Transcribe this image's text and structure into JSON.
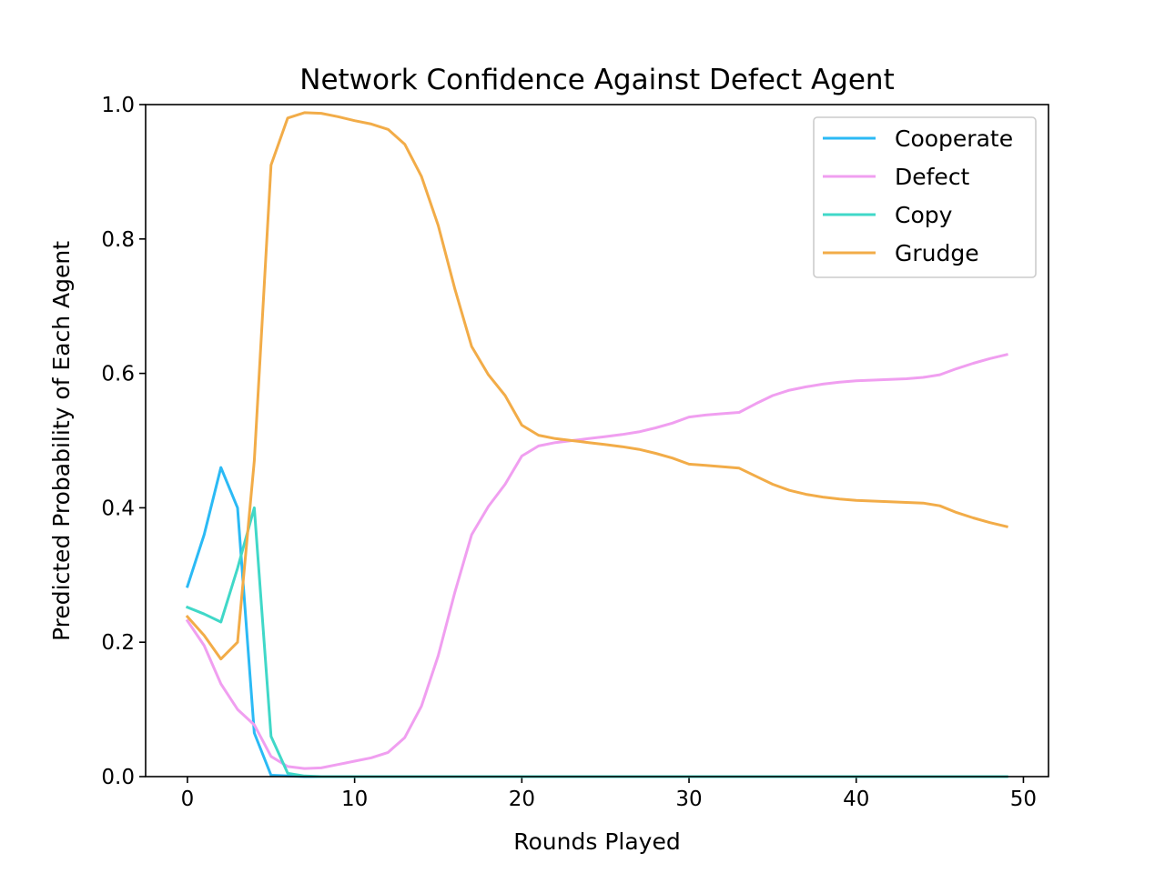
{
  "chart_data": {
    "type": "line",
    "title": "Network Confidence Against Defect Agent",
    "xlabel": "Rounds Played",
    "ylabel": "Predicted Probability of Each Agent",
    "xlim": [
      -2.5,
      51.5
    ],
    "ylim": [
      0.0,
      1.0
    ],
    "xticks": [
      0,
      10,
      20,
      30,
      40,
      50
    ],
    "yticks": [
      0.0,
      0.2,
      0.4,
      0.6,
      0.8,
      1.0
    ],
    "xtick_labels": [
      "0",
      "10",
      "20",
      "30",
      "40",
      "50"
    ],
    "ytick_labels": [
      "0.0",
      "0.2",
      "0.4",
      "0.6",
      "0.8",
      "1.0"
    ],
    "grid": false,
    "legend_position": "top-right",
    "x": [
      0,
      1,
      2,
      3,
      4,
      5,
      6,
      7,
      8,
      9,
      10,
      11,
      12,
      13,
      14,
      15,
      16,
      17,
      18,
      19,
      20,
      21,
      22,
      23,
      24,
      25,
      26,
      27,
      28,
      29,
      30,
      31,
      32,
      33,
      34,
      35,
      36,
      37,
      38,
      39,
      40,
      41,
      42,
      43,
      44,
      45,
      46,
      47,
      48,
      49
    ],
    "series": [
      {
        "name": "Cooperate",
        "color": "#2bbaf5",
        "values": [
          0.283,
          0.36,
          0.46,
          0.4,
          0.065,
          0.002,
          0.001,
          0.0,
          0.0,
          0.0,
          0.0,
          0.0,
          0.0,
          0.0,
          0.0,
          0.0,
          0.0,
          0.0,
          0.0,
          0.0,
          0.0,
          0.0,
          0.0,
          0.0,
          0.0,
          0.0,
          0.0,
          0.0,
          0.0,
          0.0,
          0.0,
          0.0,
          0.0,
          0.0,
          0.0,
          0.0,
          0.0,
          0.0,
          0.0,
          0.0,
          0.0,
          0.0,
          0.0,
          0.0,
          0.0,
          0.0,
          0.0,
          0.0,
          0.0,
          0.0
        ]
      },
      {
        "name": "Defect",
        "color": "#f09ff0",
        "values": [
          0.232,
          0.195,
          0.138,
          0.1,
          0.077,
          0.03,
          0.015,
          0.012,
          0.013,
          0.018,
          0.023,
          0.028,
          0.036,
          0.058,
          0.105,
          0.18,
          0.275,
          0.36,
          0.402,
          0.435,
          0.477,
          0.492,
          0.497,
          0.5,
          0.503,
          0.506,
          0.509,
          0.513,
          0.519,
          0.526,
          0.535,
          0.538,
          0.54,
          0.542,
          0.555,
          0.567,
          0.575,
          0.58,
          0.584,
          0.587,
          0.589,
          0.59,
          0.591,
          0.592,
          0.594,
          0.598,
          0.607,
          0.615,
          0.622,
          0.628
        ]
      },
      {
        "name": "Copy",
        "color": "#40d8c8",
        "values": [
          0.252,
          0.242,
          0.23,
          0.31,
          0.4,
          0.06,
          0.005,
          0.001,
          0.0,
          0.0,
          0.0,
          0.0,
          0.0,
          0.0,
          0.0,
          0.0,
          0.0,
          0.0,
          0.0,
          0.0,
          0.0,
          0.0,
          0.0,
          0.0,
          0.0,
          0.0,
          0.0,
          0.0,
          0.0,
          0.0,
          0.0,
          0.0,
          0.0,
          0.0,
          0.0,
          0.0,
          0.0,
          0.0,
          0.0,
          0.0,
          0.0,
          0.0,
          0.0,
          0.0,
          0.0,
          0.0,
          0.0,
          0.0,
          0.0,
          0.0
        ]
      },
      {
        "name": "Grudge",
        "color": "#f2ac48",
        "values": [
          0.238,
          0.21,
          0.175,
          0.2,
          0.47,
          0.91,
          0.98,
          0.988,
          0.987,
          0.982,
          0.976,
          0.971,
          0.963,
          0.941,
          0.893,
          0.82,
          0.725,
          0.64,
          0.598,
          0.567,
          0.523,
          0.508,
          0.503,
          0.5,
          0.497,
          0.494,
          0.491,
          0.487,
          0.481,
          0.474,
          0.465,
          0.463,
          0.461,
          0.459,
          0.447,
          0.435,
          0.426,
          0.42,
          0.416,
          0.413,
          0.411,
          0.41,
          0.409,
          0.408,
          0.407,
          0.403,
          0.393,
          0.385,
          0.378,
          0.372
        ]
      }
    ]
  }
}
